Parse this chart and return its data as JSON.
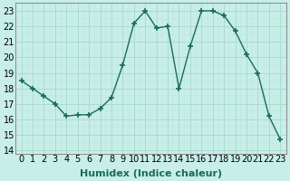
{
  "x": [
    0,
    1,
    2,
    3,
    4,
    5,
    6,
    7,
    8,
    9,
    10,
    11,
    12,
    13,
    14,
    15,
    16,
    17,
    18,
    19,
    20,
    21,
    22,
    23
  ],
  "y": [
    18.5,
    18.0,
    17.5,
    17.0,
    16.2,
    16.3,
    16.3,
    16.7,
    17.4,
    19.5,
    22.2,
    23.0,
    21.9,
    22.0,
    18.0,
    20.7,
    23.0,
    23.0,
    22.7,
    21.7,
    20.2,
    19.0,
    16.2,
    14.7
  ],
  "line_color": "#1a6b5a",
  "marker": "+",
  "marker_size": 4,
  "marker_lw": 1.2,
  "bg_color": "#c8eee8",
  "grid_major_color": "#a8d8cc",
  "grid_minor_color": "#b8e4da",
  "xlabel": "Humidex (Indice chaleur)",
  "xlabel_fontsize": 8,
  "tick_fontsize": 7,
  "ylim": [
    13.8,
    23.5
  ],
  "xlim": [
    -0.5,
    23.5
  ],
  "yticks": [
    14,
    15,
    16,
    17,
    18,
    19,
    20,
    21,
    22,
    23
  ],
  "xticks": [
    0,
    1,
    2,
    3,
    4,
    5,
    6,
    7,
    8,
    9,
    10,
    11,
    12,
    13,
    14,
    15,
    16,
    17,
    18,
    19,
    20,
    21,
    22,
    23
  ],
  "line_width": 1.0
}
